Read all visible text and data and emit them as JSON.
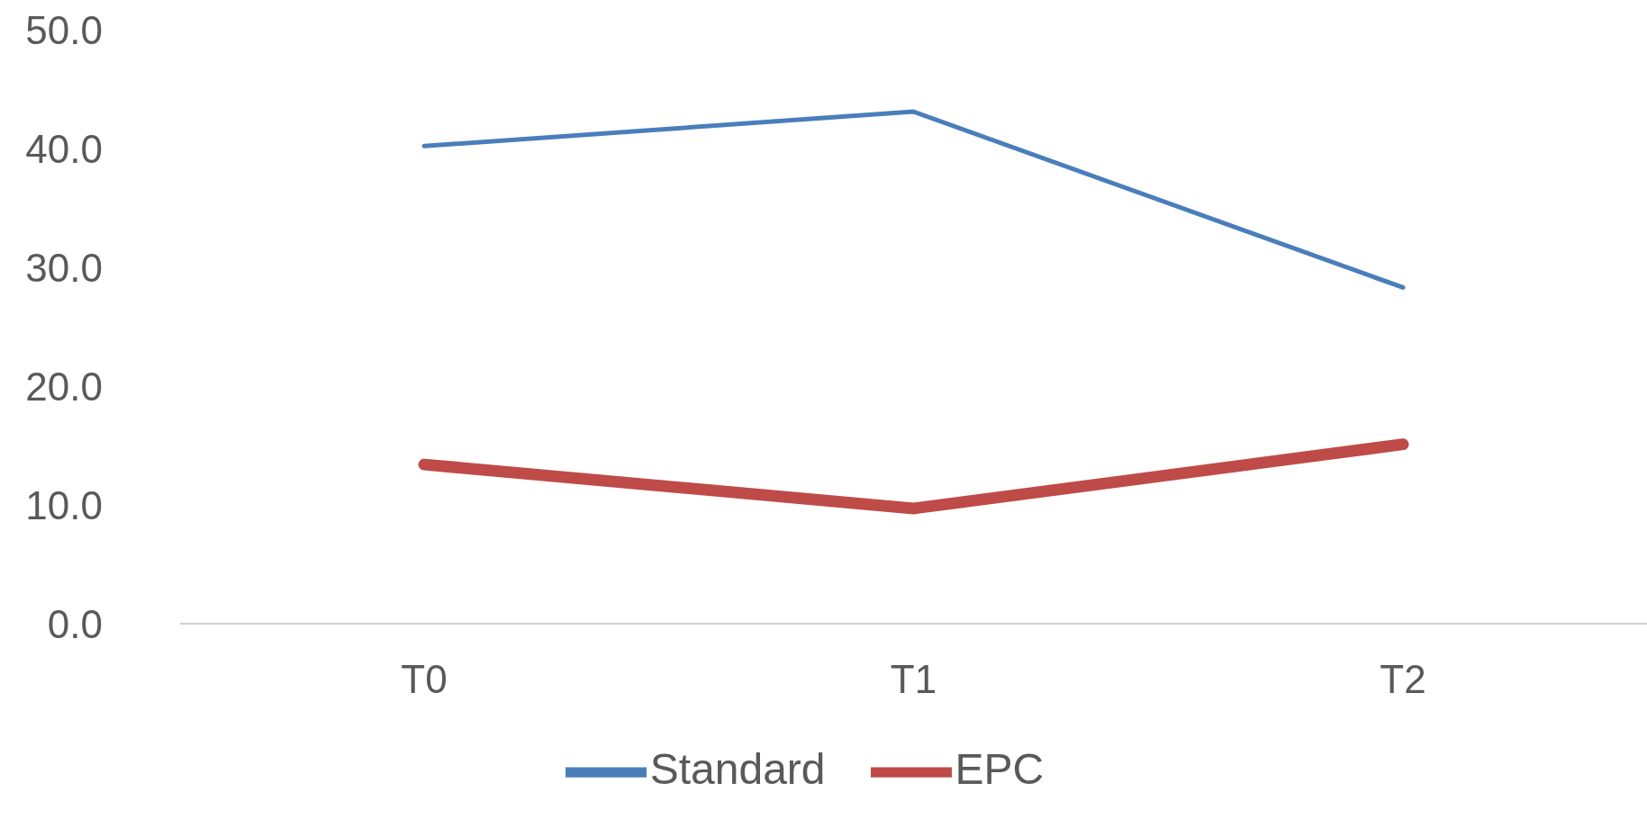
{
  "chart_data": {
    "type": "line",
    "categories": [
      "T0",
      "T1",
      "T2"
    ],
    "series": [
      {
        "name": "Standard",
        "color": "#4a7ebb",
        "values": [
          40.2,
          43.1,
          28.3
        ]
      },
      {
        "name": "EPC",
        "color": "#be4b48",
        "values": [
          13.4,
          9.7,
          15.1
        ]
      }
    ],
    "ylim": [
      0,
      50
    ],
    "yticks": [
      {
        "value": 0,
        "label": "0.0"
      },
      {
        "value": 10,
        "label": "10.0"
      },
      {
        "value": 20,
        "label": "20.0"
      },
      {
        "value": 30,
        "label": "30.0"
      },
      {
        "value": 40,
        "label": "40.0"
      },
      {
        "value": 50,
        "label": "50.0"
      }
    ],
    "grid": false,
    "legend": "bottom",
    "marker": "none",
    "line_style": "solid"
  }
}
